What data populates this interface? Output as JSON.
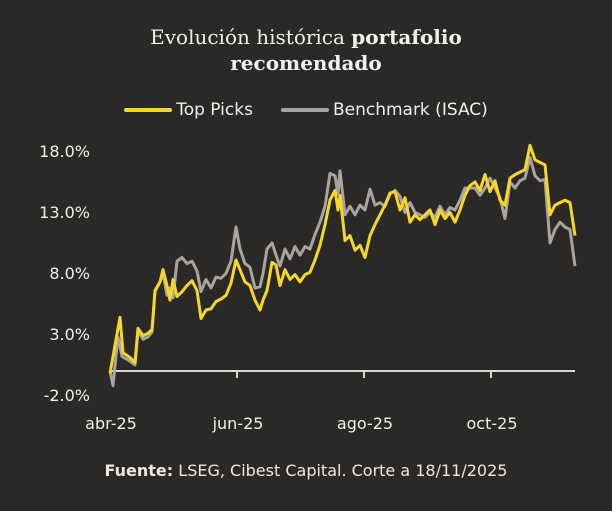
{
  "title": {
    "regular": "Evolución histórica ",
    "bold1": "portafolio",
    "bold2": "recomendado"
  },
  "legend": [
    {
      "label": "Top Picks",
      "color": "#f5d72a"
    },
    {
      "label": "Benchmark (ISAC)",
      "color": "#a9a49e"
    }
  ],
  "footer": {
    "label": "Fuente:",
    "text": " LSEG, Cibest Capital. Corte a 18/11/2025"
  },
  "chart_data": {
    "type": "line",
    "title": "Evolución histórica portafolio recomendado",
    "xlabel": "",
    "ylabel": "",
    "ylim": [
      -2.0,
      18.0
    ],
    "yticks": [
      "18.0%",
      "13.0%",
      "8.0%",
      "3.0%",
      "-2.0%"
    ],
    "ytick_values": [
      18,
      13,
      8,
      3,
      -2
    ],
    "xticks": [
      {
        "label": "abr-25",
        "t": 0
      },
      {
        "label": "jun-25",
        "t": 127
      },
      {
        "label": "ago-25",
        "t": 254
      },
      {
        "label": "oct-25",
        "t": 381
      }
    ],
    "grid": false,
    "legend_position": "top",
    "x_range": [
      0,
      465
    ],
    "series": [
      {
        "name": "Top Picks",
        "color": "#f5d72a",
        "points": [
          [
            0,
            -0.2
          ],
          [
            5,
            2.1
          ],
          [
            10,
            4.4
          ],
          [
            13,
            1.5
          ],
          [
            20,
            1.1
          ],
          [
            25,
            0.7
          ],
          [
            28,
            3.5
          ],
          [
            33,
            2.9
          ],
          [
            38,
            3.1
          ],
          [
            42,
            3.4
          ],
          [
            45,
            6.6
          ],
          [
            50,
            7.3
          ],
          [
            53,
            8.3
          ],
          [
            57,
            7.0
          ],
          [
            60,
            5.8
          ],
          [
            63,
            7.5
          ],
          [
            67,
            6.1
          ],
          [
            72,
            6.5
          ],
          [
            77,
            7.0
          ],
          [
            82,
            7.4
          ],
          [
            87,
            6.6
          ],
          [
            91,
            4.3
          ],
          [
            96,
            5.0
          ],
          [
            101,
            5.1
          ],
          [
            106,
            5.7
          ],
          [
            111,
            5.9
          ],
          [
            116,
            6.2
          ],
          [
            121,
            7.2
          ],
          [
            126,
            9.1
          ],
          [
            130,
            8.3
          ],
          [
            135,
            7.3
          ],
          [
            140,
            7.0
          ],
          [
            145,
            5.8
          ],
          [
            150,
            5.0
          ],
          [
            153,
            5.8
          ],
          [
            157,
            6.6
          ],
          [
            162,
            8.9
          ],
          [
            166,
            8.7
          ],
          [
            170,
            7.0
          ],
          [
            175,
            8.3
          ],
          [
            180,
            7.5
          ],
          [
            185,
            7.9
          ],
          [
            190,
            7.3
          ],
          [
            195,
            7.9
          ],
          [
            200,
            8.1
          ],
          [
            205,
            9.1
          ],
          [
            210,
            10.3
          ],
          [
            215,
            12.0
          ],
          [
            220,
            14.0
          ],
          [
            225,
            14.8
          ],
          [
            228,
            13.2
          ],
          [
            230,
            14.4
          ],
          [
            235,
            10.7
          ],
          [
            240,
            11.1
          ],
          [
            245,
            9.9
          ],
          [
            250,
            10.3
          ],
          [
            255,
            9.3
          ],
          [
            260,
            11.1
          ],
          [
            265,
            12.0
          ],
          [
            270,
            12.8
          ],
          [
            275,
            13.6
          ],
          [
            280,
            14.6
          ],
          [
            285,
            14.7
          ],
          [
            290,
            13.2
          ],
          [
            295,
            14.2
          ],
          [
            300,
            12.2
          ],
          [
            305,
            12.8
          ],
          [
            310,
            12.4
          ],
          [
            315,
            12.8
          ],
          [
            320,
            13.2
          ],
          [
            325,
            12.0
          ],
          [
            330,
            13.2
          ],
          [
            335,
            12.5
          ],
          [
            340,
            13.0
          ],
          [
            345,
            12.2
          ],
          [
            350,
            13.2
          ],
          [
            355,
            14.4
          ],
          [
            360,
            15.2
          ],
          [
            365,
            15.5
          ],
          [
            370,
            14.8
          ],
          [
            375,
            16.1
          ],
          [
            380,
            14.7
          ],
          [
            385,
            15.6
          ],
          [
            390,
            14.0
          ],
          [
            395,
            13.6
          ],
          [
            400,
            15.8
          ],
          [
            405,
            16.1
          ],
          [
            410,
            16.3
          ],
          [
            415,
            16.5
          ],
          [
            420,
            18.5
          ],
          [
            425,
            17.3
          ],
          [
            430,
            17.1
          ],
          [
            435,
            16.9
          ],
          [
            440,
            12.8
          ],
          [
            445,
            13.6
          ],
          [
            450,
            13.8
          ],
          [
            455,
            14.0
          ],
          [
            460,
            13.8
          ],
          [
            465,
            11.1
          ]
        ]
      },
      {
        "name": "Benchmark (ISAC)",
        "color": "#a9a49e",
        "points": [
          [
            0,
            0.0
          ],
          [
            3,
            -1.2
          ],
          [
            8,
            2.8
          ],
          [
            12,
            1.2
          ],
          [
            20,
            0.8
          ],
          [
            25,
            0.5
          ],
          [
            28,
            3.3
          ],
          [
            33,
            2.6
          ],
          [
            38,
            2.8
          ],
          [
            42,
            3.2
          ],
          [
            45,
            6.5
          ],
          [
            50,
            7.3
          ],
          [
            53,
            8.0
          ],
          [
            57,
            6.2
          ],
          [
            60,
            6.8
          ],
          [
            63,
            6.0
          ],
          [
            67,
            9.0
          ],
          [
            72,
            9.3
          ],
          [
            77,
            8.8
          ],
          [
            82,
            9.0
          ],
          [
            87,
            8.2
          ],
          [
            91,
            6.5
          ],
          [
            96,
            7.5
          ],
          [
            101,
            6.8
          ],
          [
            106,
            7.7
          ],
          [
            111,
            7.6
          ],
          [
            116,
            8.0
          ],
          [
            121,
            9.0
          ],
          [
            126,
            11.8
          ],
          [
            130,
            10.0
          ],
          [
            135,
            8.8
          ],
          [
            140,
            8.5
          ],
          [
            145,
            6.8
          ],
          [
            150,
            6.9
          ],
          [
            153,
            8.0
          ],
          [
            157,
            10.0
          ],
          [
            162,
            10.5
          ],
          [
            166,
            9.5
          ],
          [
            170,
            8.6
          ],
          [
            175,
            10.0
          ],
          [
            180,
            9.2
          ],
          [
            185,
            10.2
          ],
          [
            190,
            9.5
          ],
          [
            195,
            10.2
          ],
          [
            200,
            10.0
          ],
          [
            205,
            11.2
          ],
          [
            210,
            12.2
          ],
          [
            215,
            13.5
          ],
          [
            220,
            16.2
          ],
          [
            225,
            16.0
          ],
          [
            228,
            14.5
          ],
          [
            230,
            16.4
          ],
          [
            235,
            12.8
          ],
          [
            240,
            13.5
          ],
          [
            245,
            12.8
          ],
          [
            250,
            13.6
          ],
          [
            255,
            13.2
          ],
          [
            260,
            14.9
          ],
          [
            265,
            13.6
          ],
          [
            270,
            13.8
          ],
          [
            275,
            13.5
          ],
          [
            280,
            14.5
          ],
          [
            285,
            14.8
          ],
          [
            290,
            14.3
          ],
          [
            295,
            13.0
          ],
          [
            300,
            13.8
          ],
          [
            305,
            13.0
          ],
          [
            310,
            12.8
          ],
          [
            315,
            12.6
          ],
          [
            320,
            13.0
          ],
          [
            325,
            12.6
          ],
          [
            330,
            13.5
          ],
          [
            335,
            12.8
          ],
          [
            340,
            13.4
          ],
          [
            345,
            13.2
          ],
          [
            350,
            14.0
          ],
          [
            355,
            15.0
          ],
          [
            360,
            15.0
          ],
          [
            365,
            15.0
          ],
          [
            370,
            14.4
          ],
          [
            375,
            15.0
          ],
          [
            380,
            15.8
          ],
          [
            385,
            15.0
          ],
          [
            390,
            14.2
          ],
          [
            395,
            12.5
          ],
          [
            400,
            15.5
          ],
          [
            405,
            15.0
          ],
          [
            410,
            15.6
          ],
          [
            415,
            15.8
          ],
          [
            420,
            17.5
          ],
          [
            425,
            16.0
          ],
          [
            430,
            15.6
          ],
          [
            435,
            15.7
          ],
          [
            440,
            10.5
          ],
          [
            445,
            11.6
          ],
          [
            450,
            12.2
          ],
          [
            455,
            11.8
          ],
          [
            460,
            11.6
          ],
          [
            465,
            8.6
          ]
        ]
      }
    ]
  }
}
